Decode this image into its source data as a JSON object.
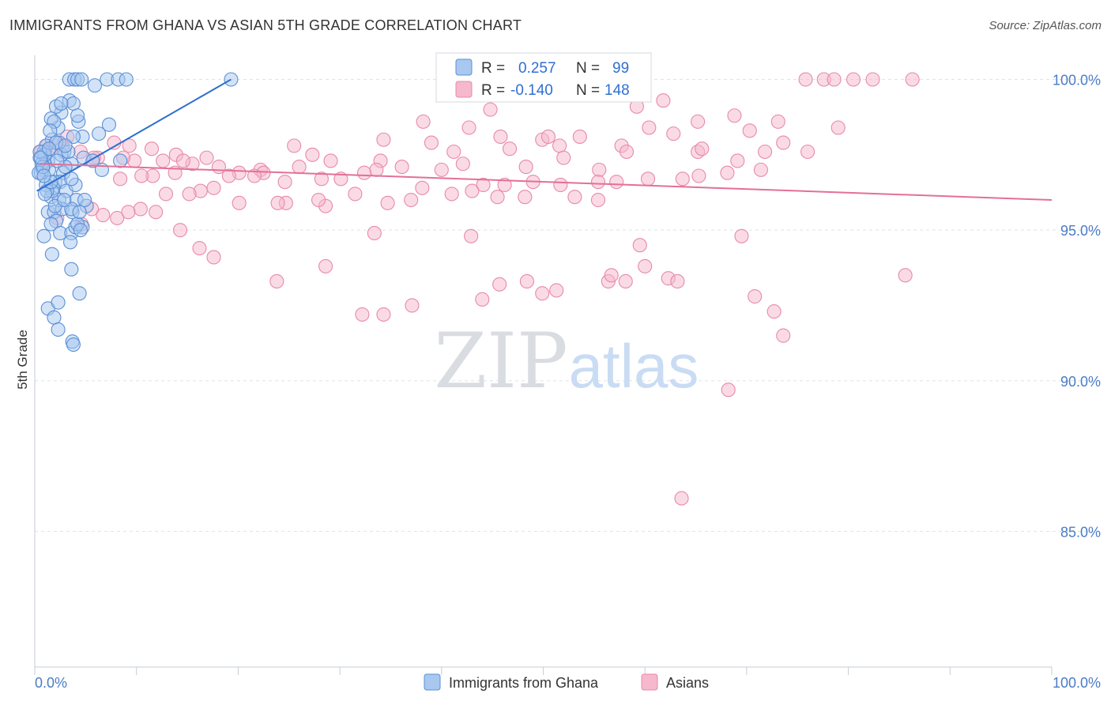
{
  "title": "IMMIGRANTS FROM GHANA VS ASIAN 5TH GRADE CORRELATION CHART",
  "source": "Source: ZipAtlas.com",
  "watermark": {
    "zip": "ZIP",
    "atlas": "atlas"
  },
  "colors": {
    "blue_fill": "#a8c8f0",
    "blue_stroke": "#5b8fd6",
    "blue_line": "#2f6fd0",
    "pink_fill": "#f6b8cc",
    "pink_stroke": "#e889a9",
    "pink_line": "#e46f98",
    "tick_text": "#4a7cc7",
    "grid": "#dde3ec"
  },
  "chart_data": {
    "type": "scatter",
    "title": "IMMIGRANTS FROM GHANA VS ASIAN 5TH GRADE CORRELATION CHART",
    "xlabel": "",
    "ylabel": "5th Grade",
    "xlim": [
      0,
      100
    ],
    "ylim": [
      80.5,
      100.8
    ],
    "x_tick_labels": [
      "0.0%",
      "100.0%"
    ],
    "y_ticks": [
      85,
      90,
      95,
      100
    ],
    "y_tick_labels": [
      "85.0%",
      "90.0%",
      "95.0%",
      "100.0%"
    ],
    "grid": true,
    "legend_position": "top-center",
    "stats": [
      {
        "r_label": "R =",
        "r": "0.257",
        "n_label": "N =",
        "n": "99"
      },
      {
        "r_label": "R =",
        "r": "-0.140",
        "n_label": "N =",
        "n": "148"
      }
    ],
    "series": [
      {
        "name": "Immigrants from Ghana",
        "color": "#a8c8f0",
        "trend": {
          "x": [
            0.2,
            19.3
          ],
          "y": [
            96.3,
            100.0
          ]
        },
        "points": [
          [
            1.7,
            98.0
          ],
          [
            0.9,
            97.5
          ],
          [
            1.3,
            97.3
          ],
          [
            2.3,
            98.4
          ],
          [
            3.4,
            99.3
          ],
          [
            4.3,
            98.6
          ],
          [
            2.6,
            98.9
          ],
          [
            1.6,
            98.7
          ],
          [
            2.1,
            99.1
          ],
          [
            1.1,
            97.8
          ],
          [
            2.9,
            97.6
          ],
          [
            3.6,
            97.2
          ],
          [
            4.8,
            97.4
          ],
          [
            0.8,
            97.0
          ],
          [
            1.0,
            97.2
          ],
          [
            2.8,
            96.9
          ],
          [
            0.6,
            96.9
          ],
          [
            2.0,
            96.6
          ],
          [
            2.5,
            96.6
          ],
          [
            3.1,
            96.3
          ],
          [
            4.0,
            96.5
          ],
          [
            1.6,
            96.1
          ],
          [
            2.4,
            96.0
          ],
          [
            4.1,
            96.0
          ],
          [
            5.1,
            95.8
          ],
          [
            1.3,
            95.6
          ],
          [
            1.9,
            95.6
          ],
          [
            2.7,
            95.7
          ],
          [
            3.7,
            95.6
          ],
          [
            2.1,
            95.3
          ],
          [
            4.7,
            95.1
          ],
          [
            2.5,
            94.9
          ],
          [
            3.6,
            94.9
          ],
          [
            3.5,
            94.6
          ],
          [
            0.9,
            94.8
          ],
          [
            1.7,
            94.2
          ],
          [
            3.6,
            93.7
          ],
          [
            4.4,
            92.9
          ],
          [
            1.3,
            92.4
          ],
          [
            2.3,
            92.6
          ],
          [
            1.9,
            92.1
          ],
          [
            2.3,
            91.7
          ],
          [
            3.7,
            91.3
          ],
          [
            3.8,
            91.2
          ],
          [
            3.4,
            100.0
          ],
          [
            3.9,
            100.0
          ],
          [
            4.2,
            100.0
          ],
          [
            4.6,
            100.0
          ],
          [
            7.1,
            100.0
          ],
          [
            8.2,
            100.0
          ],
          [
            9.0,
            100.0
          ],
          [
            5.9,
            99.8
          ],
          [
            7.3,
            98.5
          ],
          [
            6.3,
            98.2
          ],
          [
            4.7,
            98.1
          ],
          [
            3.8,
            98.1
          ],
          [
            2.4,
            97.9
          ],
          [
            2.1,
            97.9
          ],
          [
            0.9,
            97.6
          ],
          [
            1.0,
            97.5
          ],
          [
            3.0,
            97.1
          ],
          [
            5.7,
            97.3
          ],
          [
            6.6,
            97.0
          ],
          [
            8.4,
            97.3
          ],
          [
            3.6,
            96.7
          ],
          [
            1.8,
            96.4
          ],
          [
            3.6,
            95.7
          ],
          [
            2.0,
            95.8
          ],
          [
            1.6,
            95.2
          ],
          [
            4.0,
            95.1
          ],
          [
            4.2,
            95.2
          ],
          [
            4.9,
            96.0
          ],
          [
            1.7,
            96.3
          ],
          [
            1.1,
            96.5
          ],
          [
            0.5,
            97.4
          ],
          [
            0.7,
            97.2
          ],
          [
            0.4,
            96.9
          ],
          [
            1.4,
            97.0
          ],
          [
            2.6,
            97.5
          ],
          [
            3.3,
            97.6
          ],
          [
            1.9,
            98.6
          ],
          [
            3.8,
            99.2
          ],
          [
            2.6,
            99.2
          ],
          [
            4.2,
            98.8
          ],
          [
            1.5,
            98.3
          ],
          [
            3.0,
            97.8
          ],
          [
            0.8,
            97.1
          ],
          [
            0.5,
            97.6
          ],
          [
            1.2,
            96.3
          ],
          [
            2.9,
            96.0
          ],
          [
            4.4,
            95.6
          ],
          [
            19.3,
            100.0
          ],
          [
            1.0,
            96.2
          ],
          [
            1.6,
            96.6
          ],
          [
            2.2,
            97.3
          ],
          [
            0.6,
            97.4
          ],
          [
            0.9,
            96.8
          ],
          [
            1.4,
            97.7
          ],
          [
            4.5,
            95.0
          ]
        ]
      },
      {
        "name": "Asians",
        "color": "#f6b8cc",
        "trend": {
          "x": [
            0.5,
            100.0
          ],
          "y": [
            97.2,
            96.0
          ]
        },
        "points": [
          [
            75.8,
            100.0
          ],
          [
            77.6,
            100.0
          ],
          [
            78.6,
            100.0
          ],
          [
            80.5,
            100.0
          ],
          [
            82.4,
            100.0
          ],
          [
            86.3,
            100.0
          ],
          [
            61.8,
            99.3
          ],
          [
            59.2,
            99.1
          ],
          [
            44.8,
            99.0
          ],
          [
            68.8,
            98.8
          ],
          [
            65.2,
            98.6
          ],
          [
            73.1,
            98.6
          ],
          [
            42.7,
            98.4
          ],
          [
            60.4,
            98.4
          ],
          [
            79.0,
            98.4
          ],
          [
            70.3,
            98.3
          ],
          [
            38.2,
            98.6
          ],
          [
            45.8,
            98.1
          ],
          [
            49.9,
            98.0
          ],
          [
            34.3,
            98.0
          ],
          [
            39.0,
            97.9
          ],
          [
            53.6,
            98.1
          ],
          [
            57.7,
            97.8
          ],
          [
            51.6,
            97.8
          ],
          [
            62.8,
            98.2
          ],
          [
            73.6,
            97.9
          ],
          [
            50.5,
            98.1
          ],
          [
            41.2,
            97.6
          ],
          [
            46.7,
            97.7
          ],
          [
            58.2,
            97.6
          ],
          [
            65.2,
            97.6
          ],
          [
            71.8,
            97.6
          ],
          [
            65.6,
            97.7
          ],
          [
            25.5,
            97.8
          ],
          [
            34.0,
            97.3
          ],
          [
            29.1,
            97.3
          ],
          [
            27.3,
            97.5
          ],
          [
            11.5,
            97.7
          ],
          [
            9.3,
            97.8
          ],
          [
            6.2,
            97.4
          ],
          [
            3.2,
            98.1
          ],
          [
            7.8,
            97.9
          ],
          [
            52.0,
            97.4
          ],
          [
            76.0,
            97.6
          ],
          [
            69.1,
            97.3
          ],
          [
            48.3,
            97.1
          ],
          [
            55.5,
            97.0
          ],
          [
            42.1,
            97.2
          ],
          [
            40.0,
            97.0
          ],
          [
            36.1,
            97.1
          ],
          [
            33.6,
            97.0
          ],
          [
            26.0,
            97.1
          ],
          [
            22.2,
            97.0
          ],
          [
            20.1,
            96.9
          ],
          [
            18.1,
            97.1
          ],
          [
            16.9,
            97.4
          ],
          [
            13.9,
            97.5
          ],
          [
            12.6,
            97.3
          ],
          [
            15.5,
            97.2
          ],
          [
            14.6,
            97.3
          ],
          [
            9.8,
            97.3
          ],
          [
            8.7,
            97.4
          ],
          [
            5.8,
            97.4
          ],
          [
            4.5,
            97.6
          ],
          [
            2.7,
            97.8
          ],
          [
            2.0,
            97.8
          ],
          [
            1.2,
            97.8
          ],
          [
            0.6,
            97.6
          ],
          [
            71.4,
            97.0
          ],
          [
            68.1,
            96.9
          ],
          [
            65.3,
            96.8
          ],
          [
            63.7,
            96.7
          ],
          [
            60.3,
            96.7
          ],
          [
            57.2,
            96.6
          ],
          [
            55.4,
            96.6
          ],
          [
            51.7,
            96.5
          ],
          [
            49.0,
            96.6
          ],
          [
            46.2,
            96.5
          ],
          [
            44.1,
            96.5
          ],
          [
            43.0,
            96.3
          ],
          [
            38.1,
            96.4
          ],
          [
            32.4,
            96.9
          ],
          [
            30.1,
            96.7
          ],
          [
            28.2,
            96.7
          ],
          [
            24.6,
            96.6
          ],
          [
            22.5,
            96.9
          ],
          [
            21.6,
            96.8
          ],
          [
            19.1,
            96.8
          ],
          [
            17.6,
            96.4
          ],
          [
            16.3,
            96.3
          ],
          [
            13.8,
            96.9
          ],
          [
            11.6,
            96.8
          ],
          [
            10.5,
            96.8
          ],
          [
            8.4,
            96.7
          ],
          [
            55.4,
            96.0
          ],
          [
            53.1,
            96.1
          ],
          [
            48.2,
            96.1
          ],
          [
            45.5,
            96.1
          ],
          [
            41.0,
            96.2
          ],
          [
            37.0,
            96.0
          ],
          [
            34.7,
            95.9
          ],
          [
            31.5,
            96.2
          ],
          [
            28.6,
            95.8
          ],
          [
            27.9,
            96.0
          ],
          [
            24.7,
            95.9
          ],
          [
            23.9,
            95.9
          ],
          [
            20.1,
            95.9
          ],
          [
            15.2,
            96.2
          ],
          [
            12.9,
            96.2
          ],
          [
            10.4,
            95.7
          ],
          [
            8.1,
            95.4
          ],
          [
            6.7,
            95.5
          ],
          [
            4.6,
            95.2
          ],
          [
            2.2,
            95.4
          ],
          [
            69.5,
            94.8
          ],
          [
            59.5,
            94.5
          ],
          [
            60.0,
            93.8
          ],
          [
            62.3,
            93.4
          ],
          [
            58.1,
            93.3
          ],
          [
            56.4,
            93.3
          ],
          [
            51.3,
            93.0
          ],
          [
            49.9,
            92.9
          ],
          [
            44.0,
            92.7
          ],
          [
            37.1,
            92.5
          ],
          [
            34.3,
            92.2
          ],
          [
            32.2,
            92.2
          ],
          [
            70.8,
            92.8
          ],
          [
            72.7,
            92.3
          ],
          [
            73.6,
            91.5
          ],
          [
            68.2,
            89.7
          ],
          [
            63.2,
            93.3
          ],
          [
            56.7,
            93.5
          ],
          [
            48.4,
            93.3
          ],
          [
            45.7,
            93.2
          ],
          [
            42.9,
            94.8
          ],
          [
            33.4,
            94.9
          ],
          [
            28.6,
            93.8
          ],
          [
            23.8,
            93.3
          ],
          [
            17.6,
            94.1
          ],
          [
            16.2,
            94.4
          ],
          [
            14.3,
            95.0
          ],
          [
            11.9,
            95.6
          ],
          [
            9.2,
            95.6
          ],
          [
            5.6,
            95.7
          ],
          [
            85.6,
            93.5
          ],
          [
            63.6,
            86.1
          ]
        ]
      }
    ]
  },
  "legend": {
    "items": [
      "Immigrants from Ghana",
      "Asians"
    ]
  }
}
